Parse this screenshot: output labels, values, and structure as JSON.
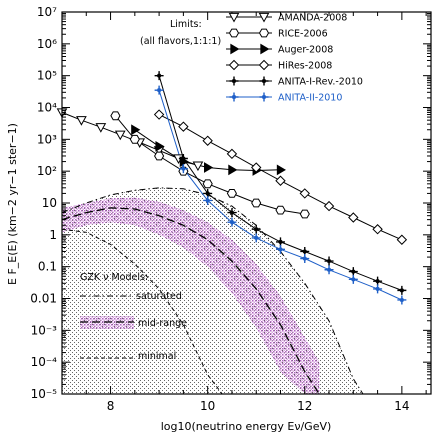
{
  "chart_data": {
    "type": "line",
    "xlabel": "log10(neutrino energy Eν/GeV)",
    "ylabel": "E F_E(E)  (km−2 yr−1 ster−1)",
    "xlim": [
      7,
      14.6
    ],
    "ylim_log10": [
      -5,
      7
    ],
    "log_y": true,
    "x_ticks": [
      8,
      10,
      12,
      14
    ],
    "y_ticks": [
      {
        "e": 7,
        "label": "10⁷"
      },
      {
        "e": 6,
        "label": "10⁶"
      },
      {
        "e": 5,
        "label": "10⁵"
      },
      {
        "e": 4,
        "label": "10⁴"
      },
      {
        "e": 3,
        "label": "10³"
      },
      {
        "e": 2,
        "label": "10²"
      },
      {
        "e": 1,
        "label": "10"
      },
      {
        "e": 0,
        "label": "1"
      },
      {
        "e": -1,
        "label": "0.1"
      },
      {
        "e": -2,
        "label": "0.01"
      },
      {
        "e": -3,
        "label": "10⁻³"
      },
      {
        "e": -4,
        "label": "10⁻⁴"
      },
      {
        "e": -5,
        "label": "10⁻⁵"
      }
    ],
    "limits_title": [
      "Limits:",
      "(all flavors,1:1:1)"
    ],
    "series": [
      {
        "name": "AMANDA-2008",
        "marker": "triangle-down",
        "color": "#000000",
        "x": [
          7.0,
          7.4,
          7.8,
          8.2,
          8.6,
          9.0,
          9.4,
          9.8
        ],
        "y": [
          7000,
          4000,
          2400,
          1400,
          800,
          450,
          250,
          150
        ]
      },
      {
        "name": "RICE-2006",
        "marker": "hexagon",
        "color": "#000000",
        "x": [
          8.1,
          8.5,
          9.0,
          9.5,
          10.0,
          10.5,
          11.0,
          11.5,
          12.0
        ],
        "y": [
          5500,
          1000,
          300,
          100,
          40,
          20,
          10,
          6,
          4.5
        ]
      },
      {
        "name": "Auger-2008",
        "marker": "triangle-right",
        "color": "#000000",
        "x": [
          8.5,
          9.0,
          9.5,
          10.0,
          10.5,
          11.0,
          11.5
        ],
        "y": [
          2000,
          600,
          200,
          130,
          110,
          105,
          110
        ]
      },
      {
        "name": "HiRes-2008",
        "marker": "diamond",
        "color": "#000000",
        "x": [
          9.0,
          9.5,
          10.0,
          10.5,
          11.0,
          11.5,
          12.0,
          12.5,
          13.0,
          13.5,
          14.0
        ],
        "y": [
          6000,
          2500,
          900,
          350,
          130,
          50,
          20,
          8,
          3.5,
          1.5,
          0.7
        ]
      },
      {
        "name": "ANITA-I-Rev.-2010",
        "marker": "star4",
        "color": "#000000",
        "x": [
          9.0,
          9.5,
          10.0,
          10.5,
          11.0,
          11.5,
          12.0,
          12.5,
          13.0,
          13.5,
          14.0
        ],
        "y": [
          100000,
          250,
          20,
          5,
          1.5,
          0.6,
          0.3,
          0.15,
          0.07,
          0.035,
          0.018
        ]
      },
      {
        "name": "ANITA-II-2010",
        "marker": "star4",
        "color": "#1e5fc8",
        "x": [
          9.0,
          9.5,
          10.0,
          10.5,
          11.0,
          11.5,
          12.0,
          12.5,
          13.0,
          13.5,
          14.0
        ],
        "y": [
          35000,
          120,
          12,
          2.5,
          0.8,
          0.35,
          0.18,
          0.08,
          0.04,
          0.02,
          0.009
        ]
      }
    ],
    "gzk_title": "GZK ν Models:",
    "gzk_models": {
      "saturated": {
        "label": "saturated",
        "style": "dashdot",
        "x": [
          7.0,
          7.5,
          8.0,
          8.5,
          9.0,
          9.5,
          10.0,
          10.5,
          11.0,
          11.5,
          12.0,
          12.5,
          13.0,
          13.2
        ],
        "y": [
          5,
          10,
          18,
          25,
          30,
          28,
          18,
          8,
          2,
          0.3,
          0.03,
          0.002,
          3e-05,
          1e-05
        ]
      },
      "mid_range": {
        "label": "mid-range",
        "style": "longdash",
        "color": "#a040b0",
        "x": [
          7.0,
          7.5,
          8.0,
          8.5,
          9.0,
          9.5,
          10.0,
          10.5,
          11.0,
          11.5,
          12.0,
          12.3
        ],
        "y": [
          3,
          5,
          7,
          6.5,
          4,
          2,
          0.7,
          0.15,
          0.02,
          0.0015,
          5e-05,
          1e-05
        ],
        "band_low": [
          1.2,
          2.0,
          2.5,
          2.0,
          1.0,
          0.4,
          0.1,
          0.015,
          0.0012,
          5e-05,
          1e-05,
          1e-05
        ],
        "band_high": [
          7,
          10,
          14,
          15,
          11,
          6,
          2.5,
          0.7,
          0.12,
          0.012,
          0.0006,
          0.0001
        ]
      },
      "minimal": {
        "label": "minimal",
        "style": "dashed",
        "x": [
          7.0,
          7.5,
          8.0,
          8.5,
          9.0,
          9.5,
          10.0,
          10.3
        ],
        "y": [
          1.5,
          1.2,
          0.5,
          0.12,
          0.02,
          0.0015,
          4e-05,
          1e-05
        ]
      }
    }
  }
}
